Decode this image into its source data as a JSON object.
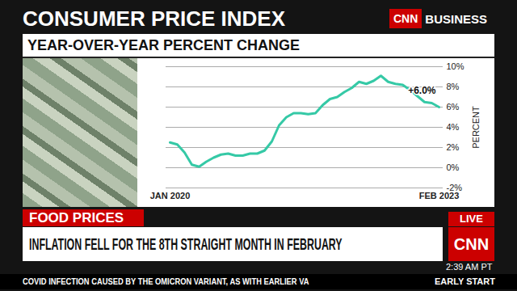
{
  "chart_data": {
    "type": "line",
    "title": "CONSUMER PRICE INDEX",
    "subtitle": "YEAR-OVER-YEAR PERCENT CHANGE",
    "y_label": "PERCENT",
    "annotation": "+6.0%",
    "categories": [
      "JAN 2020",
      null,
      null,
      null,
      null,
      null,
      null,
      null,
      null,
      null,
      null,
      null,
      null,
      null,
      null,
      null,
      null,
      null,
      null,
      null,
      null,
      null,
      null,
      null,
      null,
      null,
      null,
      null,
      null,
      null,
      null,
      null,
      null,
      null,
      null,
      null,
      null,
      "FEB 2023"
    ],
    "values": [
      2.5,
      2.3,
      1.5,
      0.3,
      0.1,
      0.6,
      1.0,
      1.3,
      1.4,
      1.2,
      1.2,
      1.4,
      1.4,
      1.7,
      2.6,
      4.2,
      5.0,
      5.4,
      5.4,
      5.3,
      5.4,
      6.2,
      6.8,
      7.0,
      7.5,
      7.9,
      8.5,
      8.3,
      8.6,
      9.1,
      8.5,
      8.3,
      8.2,
      7.7,
      7.1,
      6.5,
      6.4,
      6.0
    ],
    "color": "#35c9a6",
    "ylim": [
      -2,
      10
    ],
    "yticks": [
      {
        "value": -2,
        "label": "-2%"
      },
      {
        "value": 0,
        "label": "0%"
      },
      {
        "value": 2,
        "label": "2%"
      },
      {
        "value": 4,
        "label": "4%"
      },
      {
        "value": 6,
        "label": "6%"
      },
      {
        "value": 8,
        "label": "8%"
      },
      {
        "value": 10,
        "label": "10%"
      }
    ],
    "grid": true
  },
  "screen": {
    "network": "CNN",
    "section": "BUSINESS",
    "tag": "FOOD PRICES",
    "headline": "INFLATION FELL FOR THE 8TH STRAIGHT MONTH IN FEBRUARY",
    "live": "LIVE",
    "logo": "CNN",
    "time": "2:39 AM PT",
    "ticker": "COVID INFECTION CAUSED BY THE OMICRON VARIANT, AS WITH EARLIER VA",
    "show": "EARLY START"
  }
}
